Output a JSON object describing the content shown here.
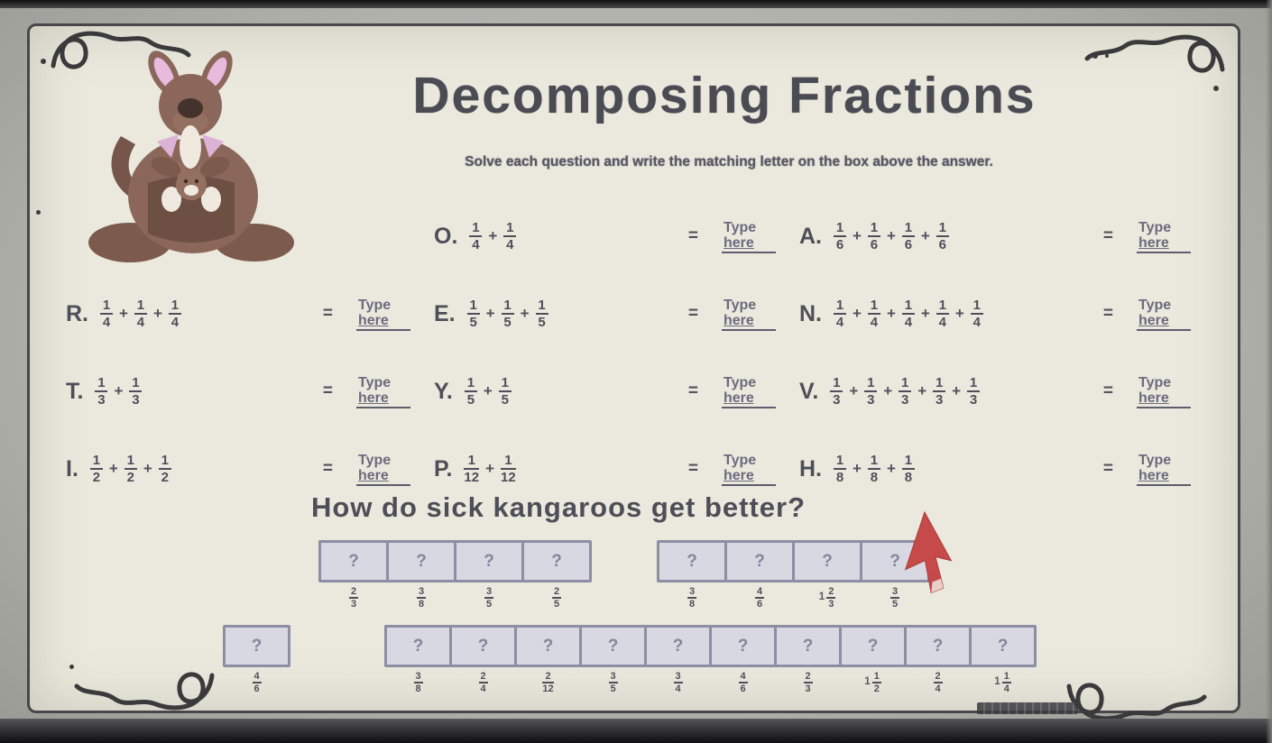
{
  "header": {
    "title": "Decomposing Fractions",
    "subtitle": "Solve each question and write the matching letter on the box above the answer."
  },
  "symbols": {
    "plus": "+",
    "equals": "="
  },
  "type_here": {
    "line1": "Type",
    "line2": "here"
  },
  "problems": [
    {
      "letter": "O.",
      "numerator": "1",
      "denominator": "4",
      "terms": 2,
      "row": 0,
      "col": 1
    },
    {
      "letter": "A.",
      "numerator": "1",
      "denominator": "6",
      "terms": 4,
      "row": 0,
      "col": 2
    },
    {
      "letter": "R.",
      "numerator": "1",
      "denominator": "4",
      "terms": 3,
      "row": 1,
      "col": 0
    },
    {
      "letter": "E.",
      "numerator": "1",
      "denominator": "5",
      "terms": 3,
      "row": 1,
      "col": 1
    },
    {
      "letter": "N.",
      "numerator": "1",
      "denominator": "4",
      "terms": 5,
      "row": 1,
      "col": 2
    },
    {
      "letter": "T.",
      "numerator": "1",
      "denominator": "3",
      "terms": 2,
      "row": 2,
      "col": 0
    },
    {
      "letter": "Y.",
      "numerator": "1",
      "denominator": "5",
      "terms": 2,
      "row": 2,
      "col": 1
    },
    {
      "letter": "V.",
      "numerator": "1",
      "denominator": "3",
      "terms": 5,
      "row": 2,
      "col": 2
    },
    {
      "letter": "I.",
      "numerator": "1",
      "denominator": "2",
      "terms": 3,
      "row": 3,
      "col": 0
    },
    {
      "letter": "P.",
      "numerator": "1",
      "denominator": "12",
      "terms": 2,
      "row": 3,
      "col": 1
    },
    {
      "letter": "H.",
      "numerator": "1",
      "denominator": "8",
      "terms": 3,
      "row": 3,
      "col": 2
    }
  ],
  "riddle": {
    "question": "How do sick kangaroos get better?",
    "placeholder": "?"
  },
  "answer_rows": [
    {
      "groups": [
        {
          "fractions": [
            {
              "n": "2",
              "d": "3"
            },
            {
              "n": "3",
              "d": "8"
            },
            {
              "n": "3",
              "d": "5"
            },
            {
              "n": "2",
              "d": "5"
            }
          ]
        },
        {
          "fractions": [
            {
              "n": "3",
              "d": "8"
            },
            {
              "n": "4",
              "d": "6"
            },
            {
              "whole": "1",
              "n": "2",
              "d": "3"
            },
            {
              "n": "3",
              "d": "5"
            }
          ]
        }
      ]
    },
    {
      "groups": [
        {
          "fractions": [
            {
              "n": "4",
              "d": "6"
            }
          ]
        },
        {
          "fractions": [
            {
              "n": "3",
              "d": "8"
            },
            {
              "n": "2",
              "d": "4"
            },
            {
              "n": "2",
              "d": "12"
            },
            {
              "n": "3",
              "d": "5"
            },
            {
              "n": "3",
              "d": "4"
            },
            {
              "n": "4",
              "d": "6"
            },
            {
              "n": "2",
              "d": "3"
            },
            {
              "whole": "1",
              "n": "1",
              "d": "2"
            },
            {
              "n": "2",
              "d": "4"
            },
            {
              "whole": "1",
              "n": "1",
              "d": "4"
            }
          ]
        }
      ]
    }
  ],
  "colors": {
    "sheet_bg": "#ebe9dd",
    "ink": "#4e4e58",
    "box_fill": "#d8d8e2",
    "box_border": "#8d8da4",
    "cursor_red": "#c64a4a",
    "kangaroo_brown": "#8a675a",
    "ear_pink": "#e7bade"
  }
}
